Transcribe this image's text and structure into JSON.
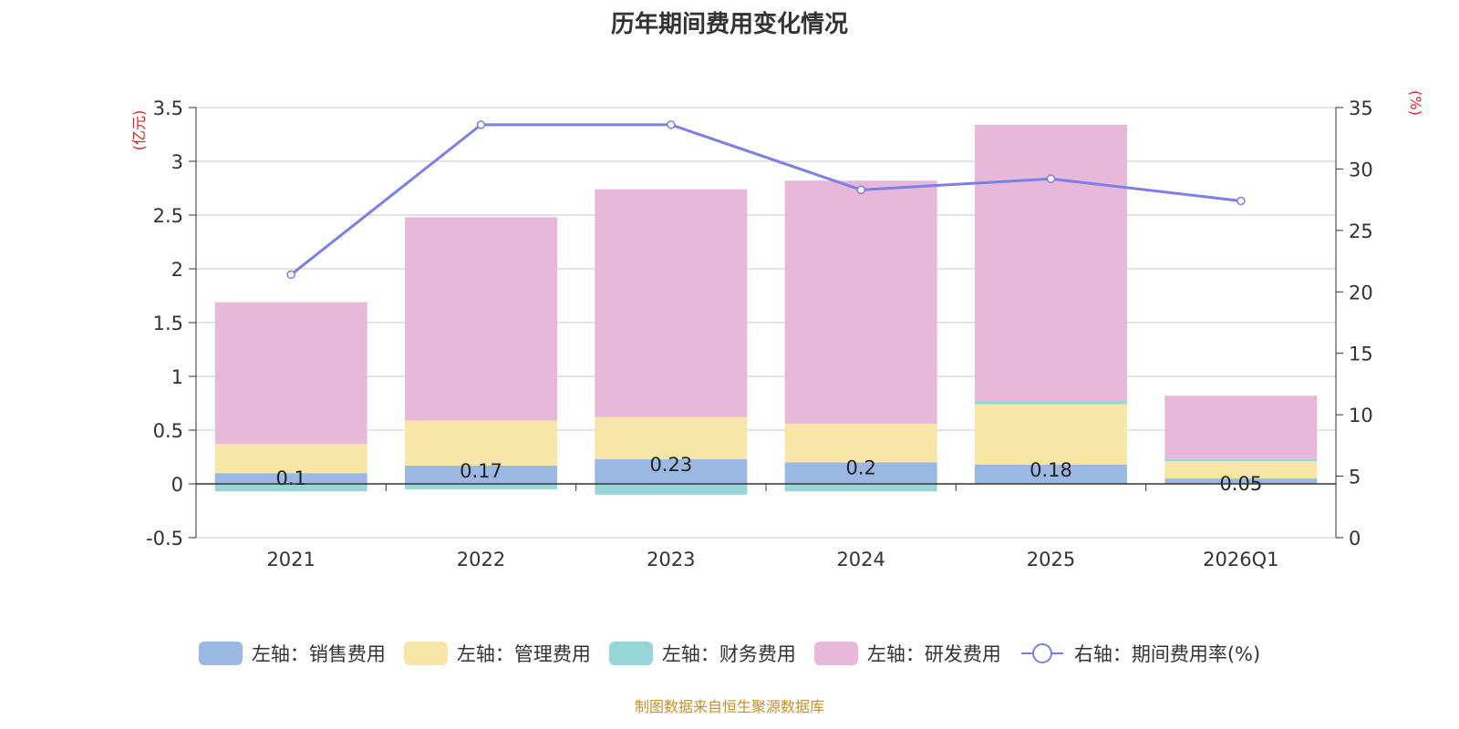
{
  "chart_data": {
    "type": "bar",
    "stacked": true,
    "title": "历年期间费用变化情况",
    "categories": [
      "2021",
      "2022",
      "2023",
      "2024",
      "2025",
      "2026Q1"
    ],
    "left_axis": {
      "unit_label": "(亿元)",
      "ylim": [
        -0.5,
        3.5
      ],
      "ticks": [
        "-0.5",
        "0",
        "0.5",
        "1",
        "1.5",
        "2",
        "2.5",
        "3",
        "3.5"
      ]
    },
    "right_axis": {
      "unit_label": "(%)",
      "ylim": [
        0,
        35
      ],
      "ticks": [
        "0",
        "5",
        "10",
        "15",
        "20",
        "25",
        "30",
        "35"
      ]
    },
    "series": [
      {
        "name": "销售费用",
        "axis": "left",
        "color": "#9bb8e2",
        "values": [
          0.1,
          0.17,
          0.23,
          0.2,
          0.18,
          0.05
        ]
      },
      {
        "name": "管理费用",
        "axis": "left",
        "color": "#f8e6a8",
        "values": [
          0.27,
          0.42,
          0.39,
          0.36,
          0.56,
          0.16
        ]
      },
      {
        "name": "财务费用",
        "axis": "left",
        "color": "#98d5d6",
        "values": [
          -0.07,
          -0.05,
          -0.1,
          -0.07,
          0.03,
          0.02
        ]
      },
      {
        "name": "研发费用",
        "axis": "left",
        "color": "#e7b8d9",
        "values": [
          1.32,
          1.89,
          2.12,
          2.26,
          2.57,
          0.59
        ]
      },
      {
        "name": "期间费用率(%)",
        "axis": "right",
        "type": "line",
        "color": "#7b7fe8",
        "values": [
          21.4,
          33.6,
          33.6,
          28.3,
          29.2,
          27.4
        ]
      }
    ],
    "data_labels": [
      "0.1",
      "0.17",
      "0.23",
      "0.2",
      "0.18",
      "0.05"
    ],
    "legend": [
      "左轴：销售费用",
      "左轴：管理费用",
      "左轴：财务费用",
      "左轴：研发费用",
      "右轴：期间费用率(%)"
    ],
    "legend_position": "bottom",
    "grid": true
  },
  "source_note": "制图数据来自恒生聚源数据库"
}
